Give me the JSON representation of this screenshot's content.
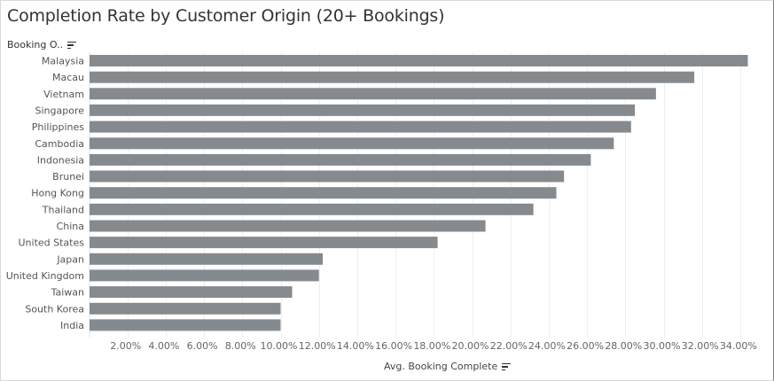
{
  "chart_data": {
    "type": "bar",
    "orientation": "horizontal",
    "title": "Completion Rate by Customer Origin (20+ Bookings)",
    "row_header": "Booking O..",
    "xlabel": "Avg. Booking Complete",
    "categories": [
      "Malaysia",
      "Macau",
      "Vietnam",
      "Singapore",
      "Philippines",
      "Cambodia",
      "Indonesia",
      "Brunei",
      "Hong Kong",
      "Thailand",
      "China",
      "United States",
      "Japan",
      "United Kingdom",
      "Taiwan",
      "South Korea",
      "India"
    ],
    "values": [
      34.4,
      31.6,
      29.6,
      28.5,
      28.3,
      27.4,
      26.2,
      24.8,
      24.4,
      23.2,
      20.7,
      18.2,
      12.2,
      12.0,
      10.6,
      10.0,
      10.0
    ],
    "xlim": [
      0,
      34.8
    ],
    "x_ticks": [
      2,
      4,
      6,
      8,
      10,
      12,
      14,
      16,
      18,
      20,
      22,
      24,
      26,
      28,
      30,
      32,
      34
    ],
    "x_tick_labels": [
      "2.00%",
      "4.00%",
      "6.00%",
      "8.00%",
      "10.00%",
      "12.00%",
      "14.00%",
      "16.00%",
      "18.00%",
      "20.00%",
      "22.00%",
      "24.00%",
      "26.00%",
      "28.00%",
      "30.00%",
      "32.00%",
      "34.00%"
    ],
    "bar_color": "#858a8f",
    "grid": true,
    "legend": "none"
  }
}
